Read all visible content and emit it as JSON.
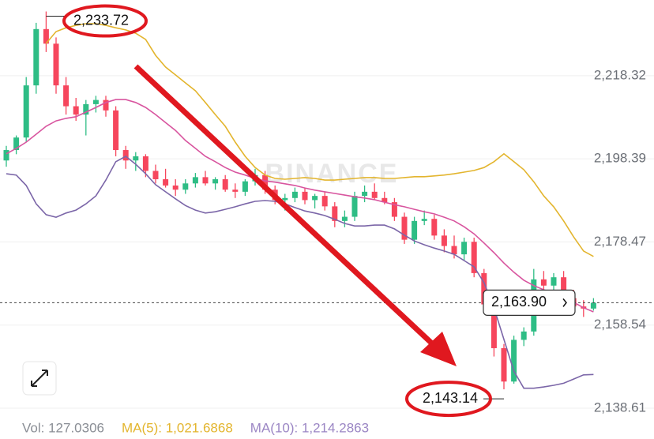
{
  "chart_data": {
    "type": "candlestick",
    "watermark": "BINANCE",
    "up_color": "#2ebd85",
    "down_color": "#f6465d",
    "candles": {
      "open": [
        2198.0,
        2200.5,
        2203.5,
        2216.0,
        2229.5,
        2226.0,
        2216.0,
        2211.0,
        2209.0,
        2211.5,
        2212.5,
        2210.0,
        2200.5,
        2198.0,
        2199.0,
        2195.5,
        2193.5,
        2192.0,
        2191.0,
        2192.5,
        2194.0,
        2192.5,
        2193.5,
        2191.0,
        2190.5,
        2193.0,
        2194.5,
        2191.0,
        2188.5,
        2189.0,
        2190.5,
        2188.5,
        2189.5,
        2187.0,
        2183.5,
        2184.5,
        2189.5,
        2190.5,
        2189.0,
        2188.0,
        2184.5,
        2179.0,
        2183.5,
        2184.0,
        2180.0,
        2177.5,
        2175.5,
        2178.5,
        2171.0,
        2163.5,
        2153.0,
        2145.0,
        2155.0,
        2157.0,
        2169.5,
        2168.0,
        2170.0,
        2165.0,
        2163.0,
        2162.5
      ],
      "high": [
        2201.5,
        2204.0,
        2218.0,
        2231.0,
        2233.72,
        2227.5,
        2218.0,
        2213.0,
        2212.5,
        2213.5,
        2213.5,
        2211.0,
        2201.5,
        2200.0,
        2199.5,
        2197.0,
        2196.0,
        2193.5,
        2193.5,
        2195.0,
        2195.5,
        2194.0,
        2194.5,
        2192.5,
        2193.5,
        2196.0,
        2195.5,
        2192.0,
        2190.0,
        2191.5,
        2191.5,
        2190.0,
        2190.5,
        2188.0,
        2186.0,
        2190.5,
        2192.0,
        2192.5,
        2190.5,
        2189.0,
        2185.5,
        2184.5,
        2186.0,
        2185.0,
        2181.5,
        2180.0,
        2179.5,
        2179.5,
        2172.0,
        2165.0,
        2154.0,
        2156.0,
        2158.0,
        2172.0,
        2171.5,
        2171.0,
        2171.5,
        2167.0,
        2164.5,
        2165.0
      ],
      "low": [
        2196.5,
        2199.5,
        2202.5,
        2214.0,
        2224.0,
        2214.0,
        2209.0,
        2207.5,
        2204.0,
        2209.5,
        2208.5,
        2199.0,
        2196.0,
        2195.5,
        2194.0,
        2192.5,
        2191.5,
        2189.5,
        2190.0,
        2191.5,
        2192.0,
        2191.0,
        2190.5,
        2189.0,
        2189.5,
        2192.0,
        2190.0,
        2187.5,
        2186.0,
        2188.0,
        2187.5,
        2186.5,
        2186.0,
        2182.0,
        2182.0,
        2183.5,
        2188.0,
        2188.5,
        2187.5,
        2183.5,
        2178.0,
        2178.0,
        2182.5,
        2179.0,
        2176.0,
        2174.5,
        2174.0,
        2170.0,
        2162.0,
        2151.0,
        2143.14,
        2144.5,
        2153.5,
        2156.0,
        2166.0,
        2165.5,
        2164.0,
        2162.5,
        2160.5,
        2162.0
      ],
      "close": [
        2200.5,
        2203.5,
        2216.0,
        2229.5,
        2226.0,
        2216.0,
        2211.0,
        2209.0,
        2211.5,
        2212.5,
        2210.0,
        2200.5,
        2198.0,
        2199.0,
        2195.5,
        2193.5,
        2192.0,
        2191.0,
        2192.5,
        2194.0,
        2192.5,
        2193.5,
        2191.0,
        2190.5,
        2193.0,
        2194.5,
        2191.0,
        2188.5,
        2189.0,
        2190.5,
        2188.5,
        2189.5,
        2187.0,
        2183.5,
        2184.5,
        2189.5,
        2190.5,
        2189.0,
        2188.0,
        2184.5,
        2179.0,
        2183.5,
        2184.0,
        2180.0,
        2177.5,
        2175.5,
        2178.5,
        2171.0,
        2163.5,
        2153.0,
        2145.0,
        2155.0,
        2157.0,
        2169.5,
        2168.0,
        2170.0,
        2165.0,
        2163.0,
        2162.5,
        2163.9
      ]
    },
    "series": [
      {
        "color": "#e3b52e",
        "values": [
          null,
          null,
          null,
          null,
          2226.06,
          2228.9,
          2229.8,
          2230.4,
          2230.8,
          2230.8,
          2230.4,
          2229.8,
          2229.3,
          2228.5,
          2227.0,
          2223.2,
          2220.4,
          2218.5,
          2216.6,
          2214.7,
          2211.9,
          2209.0,
          2206.2,
          2202.4,
          2199.0,
          2196.3,
          2194.5,
          2193.7,
          2193.5,
          2193.7,
          2193.9,
          2193.7,
          2193.3,
          2193.3,
          2193.5,
          2193.7,
          2193.9,
          2193.9,
          2193.7,
          2193.7,
          2193.9,
          2194.1,
          2194.1,
          2194.3,
          2194.5,
          2194.8,
          2195.2,
          2195.6,
          2196.3,
          2197.7,
          2199.6,
          2197.7,
          2195.8,
          2192.9,
          2189.5,
          2186.9,
          2183.5,
          2179.7,
          2176.3,
          2175.0
        ]
      },
      {
        "color": "#d8559f",
        "values": [
          2199.6,
          2200.9,
          2202.4,
          2204.3,
          2206.2,
          2207.5,
          2208.1,
          2208.5,
          2209.6,
          2210.7,
          2211.9,
          2212.6,
          2212.6,
          2211.9,
          2210.7,
          2209.0,
          2207.1,
          2205.2,
          2202.8,
          2200.9,
          2199.0,
          2197.7,
          2196.3,
          2195.2,
          2194.5,
          2193.7,
          2193.1,
          2192.8,
          2192.4,
          2192.0,
          2191.4,
          2190.9,
          2190.5,
          2190.1,
          2189.7,
          2189.3,
          2189.0,
          2188.6,
          2188.0,
          2187.4,
          2186.9,
          2186.3,
          2185.7,
          2185.2,
          2184.4,
          2183.5,
          2182.1,
          2180.4,
          2178.2,
          2175.9,
          2173.4,
          2171.2,
          2169.3,
          2168.0,
          2167.0,
          2166.1,
          2165.1,
          2164.0,
          2162.7,
          2161.7
        ]
      },
      {
        "color": "#7b66a8",
        "values": [
          2194.8,
          2194.5,
          2192.0,
          2187.6,
          2185.0,
          2184.4,
          2185.4,
          2186.1,
          2187.6,
          2189.5,
          2193.3,
          2197.7,
          2199.0,
          2197.1,
          2194.8,
          2192.2,
          2190.5,
          2188.8,
          2187.2,
          2186.1,
          2185.4,
          2185.7,
          2186.3,
          2186.9,
          2187.6,
          2188.2,
          2188.4,
          2188.2,
          2187.6,
          2186.7,
          2185.9,
          2185.4,
          2184.8,
          2183.9,
          2182.9,
          2182.3,
          2182.3,
          2182.5,
          2182.5,
          2181.6,
          2180.1,
          2178.7,
          2177.8,
          2177.0,
          2176.3,
          2175.5,
          2174.0,
          2172.5,
          2168.7,
          2162.7,
          2155.1,
          2147.5,
          2143.4,
          2143.4,
          2143.7,
          2144.1,
          2144.6,
          2145.6,
          2146.6,
          2146.7
        ]
      }
    ],
    "ylim": [
      2136.15,
      2236.47
    ],
    "yticks": [
      {
        "value": 2218.32,
        "label": "2,218.32"
      },
      {
        "value": 2198.39,
        "label": "2,198.39"
      },
      {
        "value": 2178.47,
        "label": "2,178.47"
      },
      {
        "value": 2158.54,
        "label": "2,158.54"
      },
      {
        "value": 2138.61,
        "label": "2,138.61"
      }
    ],
    "grid": true,
    "high_label": {
      "value": 2233.72,
      "label": "2,233.72"
    },
    "low_label": {
      "value": 2143.14,
      "label": "2,143.14"
    },
    "last_price": {
      "value": 2163.9,
      "label": "2,163.90"
    },
    "footer": [
      {
        "text": "Vol: 127.0306",
        "color": "#8a8e95"
      },
      {
        "text": "MA(5): 1,021.6868",
        "color": "#e3b52e"
      },
      {
        "text": "MA(10): 1,214.2863",
        "color": "#9b86c4"
      }
    ]
  }
}
